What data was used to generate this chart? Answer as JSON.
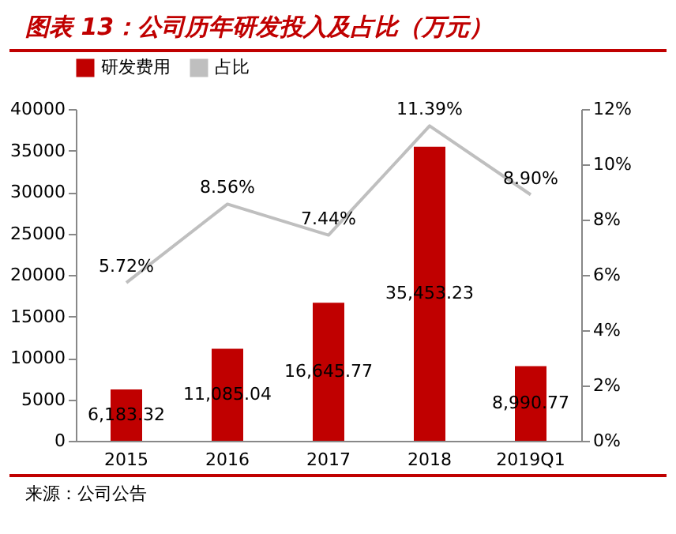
{
  "chart_data": {
    "type": "bar",
    "title": "图表 13：公司历年研发投入及占比（万元）",
    "categories": [
      "2015",
      "2016",
      "2017",
      "2018",
      "2019Q1"
    ],
    "series": [
      {
        "name": "研发费用",
        "color": "#c00000",
        "values": [
          6183.32,
          11085.04,
          16645.77,
          35453.23,
          8990.77
        ],
        "value_labels": [
          "6,183.32",
          "11,085.04",
          "16,645.77",
          "35,453.23",
          "8,990.77"
        ]
      },
      {
        "name": "占比",
        "type": "line",
        "axis": "y2",
        "color": "#bfbfbf",
        "values": [
          5.72,
          8.56,
          7.44,
          11.39,
          8.9
        ],
        "value_labels": [
          "5.72%",
          "8.56%",
          "7.44%",
          "11.39%",
          "8.90%"
        ]
      }
    ],
    "ylim": [
      0,
      40000
    ],
    "yticks": [
      0,
      5000,
      10000,
      15000,
      20000,
      25000,
      30000,
      35000,
      40000
    ],
    "y2lim": [
      0,
      12
    ],
    "y2ticks": [
      {
        "value": 0,
        "label": "0%"
      },
      {
        "value": 2,
        "label": "2%"
      },
      {
        "value": 4,
        "label": "4%"
      },
      {
        "value": 6,
        "label": "6%"
      },
      {
        "value": 8,
        "label": "8%"
      },
      {
        "value": 10,
        "label": "10%"
      },
      {
        "value": 12,
        "label": "12%"
      }
    ],
    "legend": "top",
    "grid": false,
    "annotations": [
      "来源：公司公告"
    ]
  }
}
